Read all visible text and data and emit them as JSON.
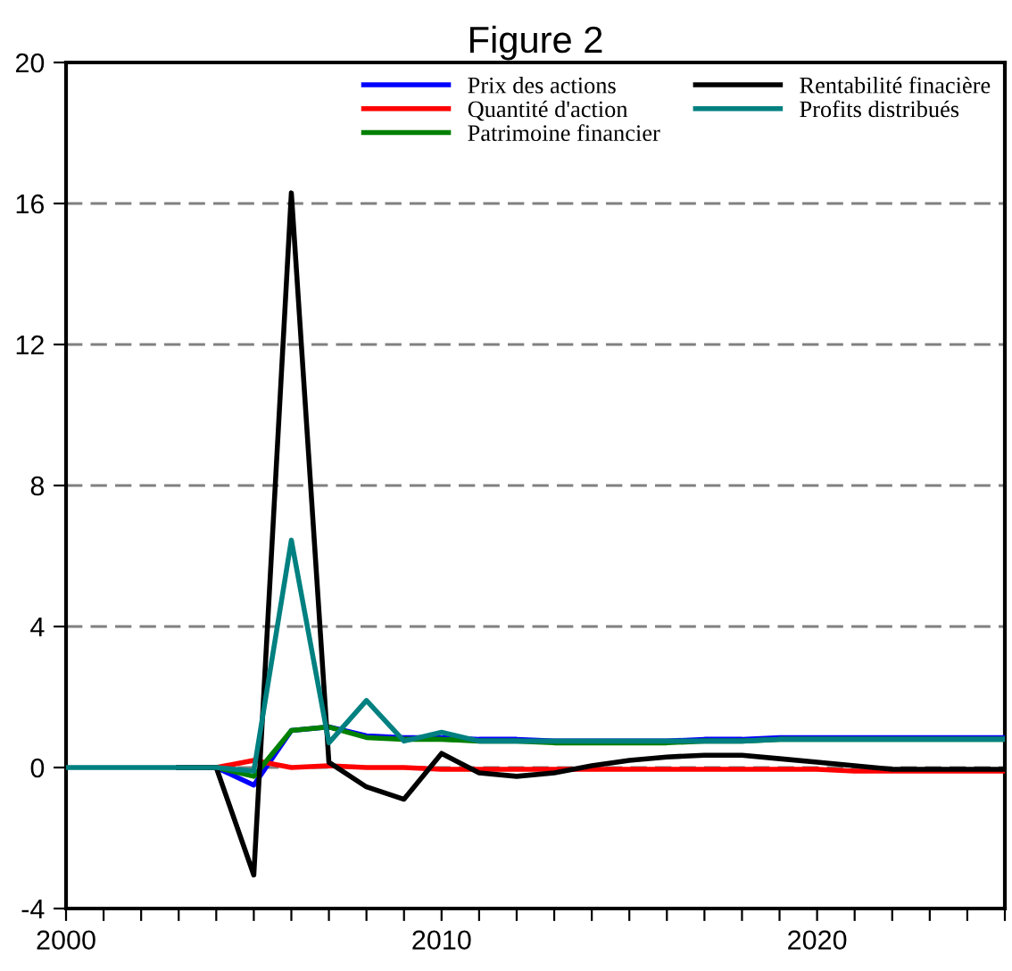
{
  "chart_data": {
    "type": "line",
    "title": "Figure 2",
    "x": [
      2000,
      2001,
      2002,
      2003,
      2004,
      2005,
      2006,
      2007,
      2008,
      2009,
      2010,
      2011,
      2012,
      2013,
      2014,
      2015,
      2016,
      2017,
      2018,
      2019,
      2020,
      2021,
      2022,
      2023,
      2024,
      2025
    ],
    "series": [
      {
        "name": "Prix des actions",
        "color": "#0000ff",
        "values": [
          null,
          null,
          null,
          0,
          0,
          -0.5,
          1.05,
          1.15,
          0.9,
          0.85,
          0.85,
          0.8,
          0.8,
          0.75,
          0.75,
          0.75,
          0.75,
          0.8,
          0.8,
          0.85,
          0.85,
          0.85,
          0.85,
          0.85,
          0.85,
          0.85
        ]
      },
      {
        "name": "Quantité d'action",
        "color": "#ff0000",
        "values": [
          null,
          null,
          null,
          0,
          0,
          0.2,
          0,
          0.05,
          0,
          0,
          -0.05,
          -0.05,
          -0.05,
          -0.05,
          -0.05,
          -0.05,
          -0.05,
          -0.05,
          -0.05,
          -0.05,
          -0.05,
          -0.1,
          -0.1,
          -0.1,
          -0.1,
          -0.1
        ]
      },
      {
        "name": "Patrimoine financier",
        "color": "#008000",
        "values": [
          null,
          null,
          null,
          0,
          0,
          -0.25,
          1.05,
          1.15,
          0.85,
          0.8,
          0.8,
          0.75,
          0.75,
          0.7,
          0.7,
          0.7,
          0.7,
          0.75,
          0.75,
          0.8,
          0.8,
          0.8,
          0.8,
          0.8,
          0.8,
          0.8
        ]
      },
      {
        "name": "Rentabilité finacière",
        "color": "#000000",
        "values": [
          null,
          null,
          null,
          0,
          0,
          -3.05,
          16.3,
          0.15,
          -0.55,
          -0.9,
          0.4,
          -0.15,
          -0.25,
          -0.15,
          0.05,
          0.2,
          0.3,
          0.35,
          0.35,
          0.25,
          0.15,
          0.05,
          -0.05,
          -0.05,
          -0.05,
          -0.05
        ]
      },
      {
        "name": "Profits distribués",
        "color": "#008080",
        "values": [
          0,
          0,
          0,
          0,
          0,
          -0.1,
          6.45,
          0.7,
          1.9,
          0.75,
          1.0,
          0.75,
          0.75,
          0.75,
          0.75,
          0.75,
          0.75,
          0.75,
          0.75,
          0.8,
          0.8,
          0.8,
          0.8,
          0.8,
          0.8,
          0.8
        ]
      }
    ],
    "xlim": [
      2000,
      2025
    ],
    "xticks": [
      2000,
      {
        "value": 2001,
        "label": null
      },
      {
        "value": 2002,
        "label": null
      },
      {
        "value": 2003,
        "label": null
      },
      {
        "value": 2004,
        "label": null
      },
      {
        "value": 2005,
        "label": null
      },
      {
        "value": 2006,
        "label": null
      },
      {
        "value": 2007,
        "label": null
      },
      {
        "value": 2008,
        "label": null
      },
      {
        "value": 2009,
        "label": null
      },
      2010,
      {
        "value": 2011,
        "label": null
      },
      {
        "value": 2012,
        "label": null
      },
      {
        "value": 2013,
        "label": null
      },
      {
        "value": 2014,
        "label": null
      },
      {
        "value": 2015,
        "label": null
      },
      {
        "value": 2016,
        "label": null
      },
      {
        "value": 2017,
        "label": null
      },
      {
        "value": 2018,
        "label": null
      },
      {
        "value": 2019,
        "label": null
      },
      2020,
      {
        "value": 2021,
        "label": null
      },
      {
        "value": 2022,
        "label": null
      },
      {
        "value": 2023,
        "label": null
      },
      {
        "value": 2024,
        "label": null
      },
      {
        "value": 2025,
        "label": null
      }
    ],
    "ylim": [
      -4,
      20
    ],
    "yticks": [
      -4,
      0,
      4,
      8,
      12,
      16,
      20
    ],
    "grid": "y",
    "legend": "top right",
    "marker": "none",
    "line_style": "solid"
  }
}
